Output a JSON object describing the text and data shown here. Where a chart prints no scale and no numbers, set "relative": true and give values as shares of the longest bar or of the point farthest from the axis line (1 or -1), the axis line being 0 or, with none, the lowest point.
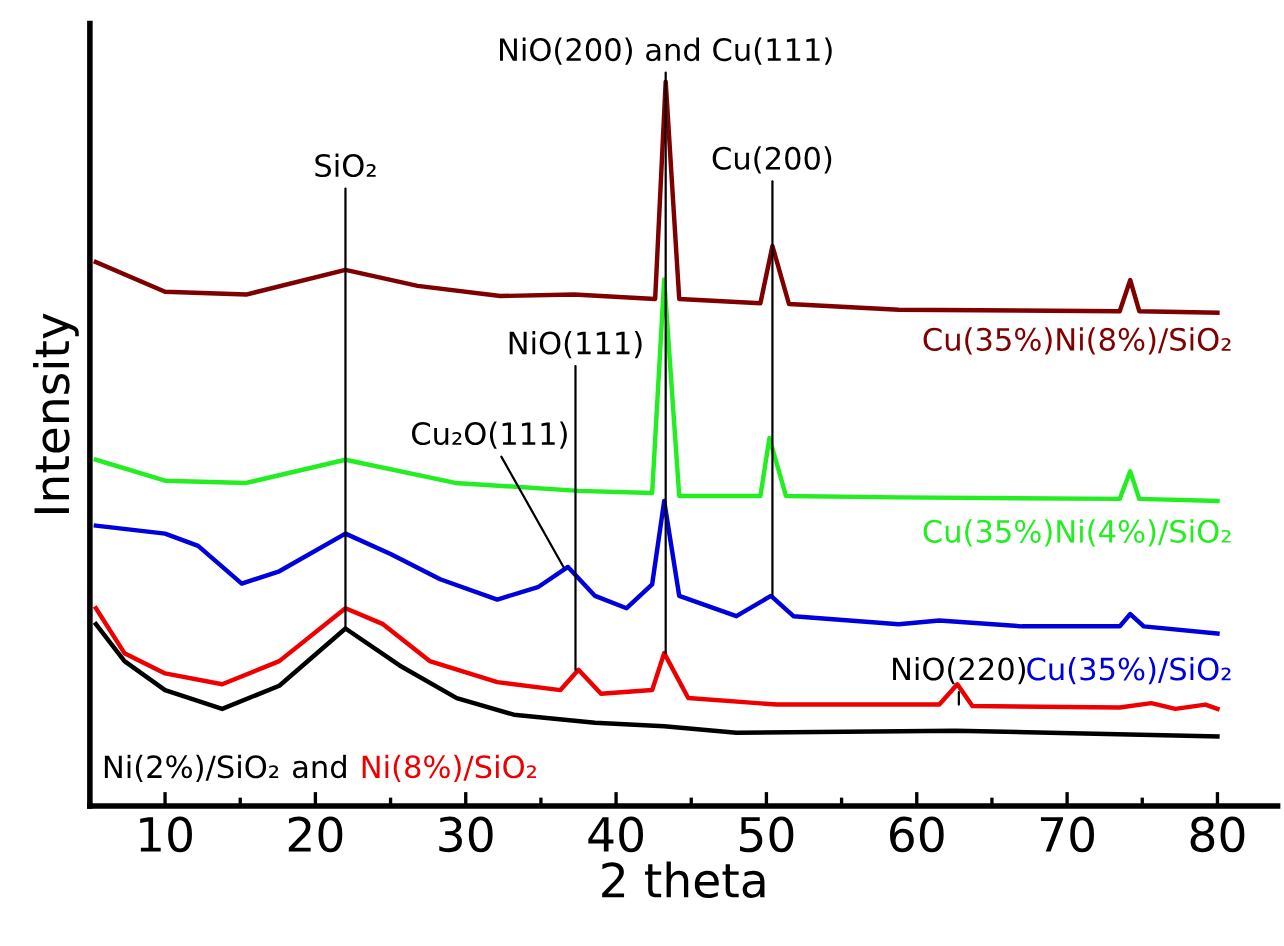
{
  "chart_data": {
    "type": "line",
    "relative": true,
    "xlabel": "2 theta",
    "ylabel": "Intensity",
    "xlim": [
      5,
      84
    ],
    "xticks": [
      {
        "value": 5,
        "label": null
      },
      10,
      {
        "value": 15,
        "label": null
      },
      20,
      {
        "value": 25,
        "label": null
      },
      30,
      {
        "value": 35,
        "label": null
      },
      40,
      {
        "value": 45,
        "label": null
      },
      50,
      {
        "value": 55,
        "label": null
      },
      60,
      {
        "value": 65,
        "label": null
      },
      70,
      {
        "value": 75,
        "label": null
      },
      80
    ],
    "grid": false,
    "marker": "none",
    "line_style": "solid",
    "series": [
      {
        "name": "Ni(2%)/SiO₂",
        "color": "#000000",
        "x": [
          5.4,
          7.3,
          10,
          13.8,
          17.6,
          22,
          25.6,
          29.4,
          33.2,
          38.6,
          43.2,
          48,
          62.6,
          80
        ],
        "values": [
          0.251,
          0.2,
          0.16,
          0.134,
          0.166,
          0.245,
          0.194,
          0.149,
          0.126,
          0.115,
          0.11,
          0.101,
          0.104,
          0.096
        ]
      },
      {
        "name": "Ni(8%)/SiO₂",
        "color": "#ee0000",
        "x": [
          5.4,
          7.3,
          10,
          13.8,
          17.6,
          22,
          24.5,
          27.6,
          32.1,
          36.3,
          37.5,
          39,
          42.4,
          43.2,
          44.8,
          50.7,
          61.5,
          62.7,
          63.7,
          73.5,
          75.6,
          77.2,
          79.2,
          80
        ],
        "values": [
          0.273,
          0.211,
          0.183,
          0.168,
          0.2,
          0.273,
          0.251,
          0.2,
          0.171,
          0.16,
          0.188,
          0.155,
          0.16,
          0.211,
          0.149,
          0.14,
          0.14,
          0.168,
          0.138,
          0.136,
          0.142,
          0.134,
          0.14,
          0.134
        ]
      },
      {
        "name": "Cu(35%)/SiO₂",
        "color": "#0000dd",
        "x": [
          5.4,
          10,
          12.2,
          15.1,
          17.6,
          22,
          25,
          28.3,
          32.1,
          34.8,
          36.8,
          38.6,
          40.7,
          42.4,
          43.2,
          44.2,
          48,
          50.3,
          51.8,
          58.8,
          61.5,
          67,
          73.5,
          74.2,
          75.1,
          80
        ],
        "values": [
          0.387,
          0.376,
          0.359,
          0.307,
          0.324,
          0.376,
          0.348,
          0.313,
          0.285,
          0.302,
          0.33,
          0.29,
          0.273,
          0.306,
          0.421,
          0.29,
          0.262,
          0.29,
          0.262,
          0.251,
          0.256,
          0.248,
          0.248,
          0.265,
          0.248,
          0.238
        ]
      },
      {
        "name": "Cu(35%)Ni(4%)/SiO₂",
        "color": "#22ee22",
        "x": [
          5.4,
          10,
          15.4,
          22,
          29.3,
          37.5,
          42.4,
          43.2,
          44.2,
          49.6,
          50.2,
          51.3,
          58.8,
          73.5,
          74.2,
          74.8,
          80
        ],
        "values": [
          0.478,
          0.449,
          0.446,
          0.478,
          0.446,
          0.435,
          0.432,
          0.727,
          0.428,
          0.428,
          0.508,
          0.428,
          0.426,
          0.424,
          0.462,
          0.424,
          0.421
        ]
      },
      {
        "name": "Cu(35%)Ni(8%)/SiO₂",
        "color": "#7f0000",
        "x": [
          5.4,
          10,
          15.4,
          22,
          26.8,
          32.3,
          37.2,
          42.6,
          43.3,
          44.2,
          49.6,
          50.4,
          51.5,
          58.8,
          73.5,
          74.2,
          74.8,
          80
        ],
        "values": [
          0.751,
          0.71,
          0.706,
          0.74,
          0.718,
          0.704,
          0.706,
          0.7,
          1.0,
          0.7,
          0.694,
          0.773,
          0.693,
          0.685,
          0.683,
          0.726,
          0.683,
          0.681
        ]
      }
    ],
    "annotations": [
      {
        "text": "SiO₂",
        "x": 22,
        "y": 0.245
      },
      {
        "text": "NiO(200) and Cu(111)",
        "x": 43.3,
        "y": 0.211
      },
      {
        "text": "Cu(200)",
        "x": 50.4,
        "y": 0.29
      },
      {
        "text": "NiO(111)",
        "x": 37.3,
        "y": 0.188
      },
      {
        "text": "Cu₂O(111)",
        "x": 36.5,
        "y": 0.33
      },
      {
        "text": "NiO(220)",
        "x": 62.8,
        "y": 0.14
      },
      "and"
    ]
  }
}
